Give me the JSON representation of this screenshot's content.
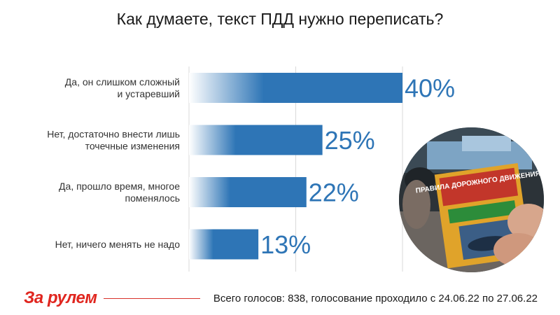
{
  "header": {
    "title": "Как думаете, текст ПДД нужно переписать?"
  },
  "chart_data": {
    "type": "bar",
    "orientation": "horizontal",
    "title": "Как думаете, текст ПДД нужно переписать?",
    "categories": [
      [
        "Да, он слишком сложный",
        "и устаревший"
      ],
      [
        "Нет, достаточно внести лишь",
        "точечные изменения"
      ],
      [
        "Да, прошло время, многое",
        "поменялось"
      ],
      [
        "Нет, ничего менять не надо"
      ]
    ],
    "values": [
      40,
      25,
      22,
      13
    ],
    "value_labels": [
      "40%",
      "25%",
      "22%",
      "13%"
    ],
    "xlim": [
      0,
      60
    ],
    "grid": true,
    "bar_color": "#2e75b6"
  },
  "photo": {
    "icon": "traffic-rules-book-photo",
    "book_title": "ПРАВИЛА ДОРОЖНОГО ДВИЖЕНИЯ"
  },
  "footer": {
    "logo_text": "За рулем",
    "votes_text": "Всего голосов: 838, голосование проходило с 24.06.22 по 27.06.22",
    "accent_color": "#e0261f"
  }
}
